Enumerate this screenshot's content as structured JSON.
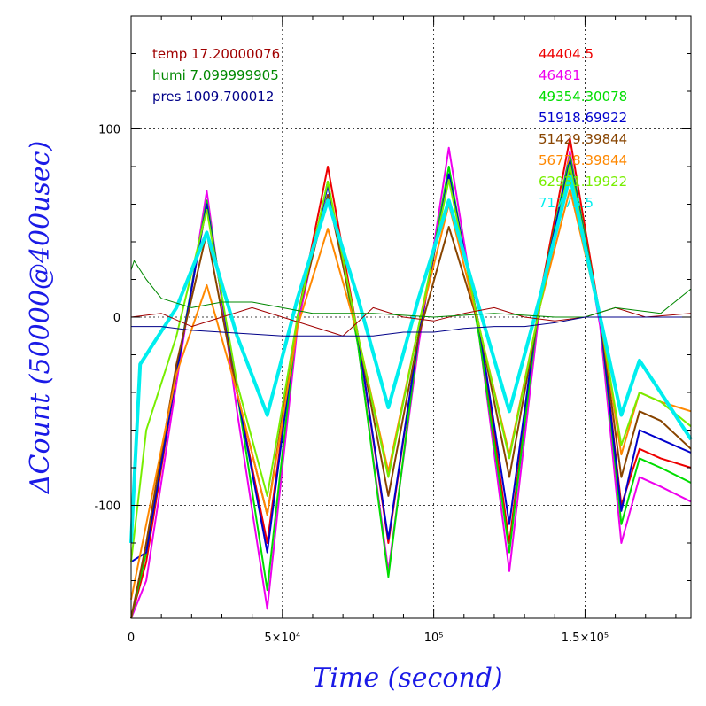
{
  "chart_data": {
    "type": "line",
    "xlabel": "Time (second)",
    "ylabel": "ΔCount (50000@400usec)",
    "xlim": [
      0,
      185000
    ],
    "ylim": [
      -160,
      160
    ],
    "grid": true,
    "x_ticks": [
      {
        "value": 0,
        "label": "0"
      },
      {
        "value": 50000,
        "label": "5×10⁴"
      },
      {
        "value": 100000,
        "label": "10⁵"
      },
      {
        "value": 150000,
        "label": "1.5×10⁵"
      }
    ],
    "y_ticks": [
      {
        "value": -100,
        "label": "-100"
      },
      {
        "value": 0,
        "label": "0"
      },
      {
        "value": 100,
        "label": "100"
      }
    ],
    "env_legend": [
      {
        "text": "temp 17.20000076",
        "color": "#a00000"
      },
      {
        "text": "humi 7.099999905",
        "color": "#008800"
      },
      {
        "text": "pres 1009.700012",
        "color": "#000088"
      }
    ],
    "series_legend": [
      {
        "text": "44404.5",
        "color": "#ee0000"
      },
      {
        "text": "46481",
        "color": "#ee00ee"
      },
      {
        "text": "49354.30078",
        "color": "#00dd00"
      },
      {
        "text": "51918.69922",
        "color": "#0000cc"
      },
      {
        "text": "51429.39844",
        "color": "#884400"
      },
      {
        "text": "56778.39844",
        "color": "#ff8800"
      },
      {
        "text": "62931.19922",
        "color": "#77ee00"
      },
      {
        "text": "71773.5",
        "color": "#00eeee"
      }
    ],
    "series": [
      {
        "name": "44404.5",
        "color": "#ee0000",
        "x": [
          0,
          5000,
          15000,
          25000,
          35000,
          45000,
          55000,
          65000,
          75000,
          85000,
          95000,
          105000,
          115000,
          125000,
          135000,
          145000,
          155000,
          162000,
          168000,
          175000,
          185000
        ],
        "y": [
          -160,
          -130,
          -30,
          60,
          -40,
          -120,
          0,
          80,
          -10,
          -120,
          -10,
          75,
          -5,
          -120,
          10,
          95,
          0,
          -100,
          -70,
          -75,
          -80
        ]
      },
      {
        "name": "46481",
        "color": "#ee00ee",
        "x": [
          0,
          5000,
          15000,
          25000,
          35000,
          45000,
          55000,
          65000,
          75000,
          85000,
          95000,
          105000,
          115000,
          125000,
          135000,
          145000,
          155000,
          162000,
          168000,
          175000,
          185000
        ],
        "y": [
          -160,
          -140,
          -35,
          67,
          -50,
          -155,
          -5,
          72,
          -15,
          -135,
          -15,
          90,
          -10,
          -135,
          5,
          88,
          -5,
          -120,
          -85,
          -90,
          -98
        ]
      },
      {
        "name": "49354.30078",
        "color": "#00dd00",
        "x": [
          0,
          5000,
          15000,
          25000,
          35000,
          45000,
          55000,
          65000,
          75000,
          85000,
          95000,
          105000,
          115000,
          125000,
          135000,
          145000,
          155000,
          162000,
          168000,
          175000,
          185000
        ],
        "y": [
          -160,
          -125,
          -30,
          62,
          -40,
          -145,
          0,
          72,
          -15,
          -138,
          -10,
          80,
          -10,
          -125,
          10,
          86,
          0,
          -110,
          -75,
          -80,
          -88
        ]
      },
      {
        "name": "51918.69922",
        "color": "#0000cc",
        "x": [
          0,
          5000,
          15000,
          25000,
          35000,
          45000,
          55000,
          65000,
          75000,
          85000,
          95000,
          105000,
          115000,
          125000,
          135000,
          145000,
          155000,
          162000,
          168000,
          175000,
          185000
        ],
        "y": [
          -130,
          -125,
          -30,
          60,
          -40,
          -125,
          0,
          70,
          -10,
          -118,
          -10,
          76,
          -5,
          -110,
          10,
          83,
          0,
          -103,
          -60,
          -65,
          -72
        ]
      },
      {
        "name": "51429.39844",
        "color": "#884400",
        "x": [
          0,
          5000,
          15000,
          25000,
          35000,
          45000,
          55000,
          65000,
          75000,
          85000,
          95000,
          105000,
          115000,
          125000,
          135000,
          145000,
          155000,
          162000,
          168000,
          175000,
          185000
        ],
        "y": [
          -160,
          -120,
          -25,
          45,
          -40,
          -105,
          0,
          65,
          -10,
          -95,
          -10,
          48,
          -5,
          -85,
          5,
          78,
          0,
          -85,
          -50,
          -55,
          -70
        ]
      },
      {
        "name": "56778.39844",
        "color": "#ff8800",
        "x": [
          0,
          5000,
          15000,
          25000,
          35000,
          45000,
          55000,
          65000,
          75000,
          85000,
          95000,
          105000,
          115000,
          125000,
          135000,
          145000,
          155000,
          162000,
          168000,
          175000,
          185000
        ],
        "y": [
          -150,
          -110,
          -30,
          17,
          -40,
          -105,
          -5,
          47,
          -10,
          -82,
          -5,
          60,
          -5,
          -73,
          5,
          68,
          0,
          -73,
          -40,
          -45,
          -50
        ]
      },
      {
        "name": "62931.19922",
        "color": "#77ee00",
        "x": [
          0,
          5000,
          15000,
          25000,
          35000,
          45000,
          55000,
          65000,
          75000,
          85000,
          95000,
          105000,
          115000,
          125000,
          135000,
          145000,
          155000,
          162000,
          168000,
          175000,
          185000
        ],
        "y": [
          -130,
          -60,
          -10,
          57,
          -35,
          -95,
          0,
          72,
          -10,
          -85,
          -5,
          73,
          -5,
          -75,
          5,
          81,
          0,
          -68,
          -40,
          -45,
          -58
        ]
      },
      {
        "name": "71773.5",
        "color": "#00eeee",
        "x": [
          0,
          3000,
          5000,
          15000,
          25000,
          35000,
          45000,
          55000,
          65000,
          75000,
          85000,
          95000,
          105000,
          115000,
          125000,
          135000,
          145000,
          155000,
          162000,
          168000,
          175000,
          185000
        ],
        "y": [
          -120,
          -25,
          -20,
          5,
          45,
          -10,
          -52,
          10,
          62,
          10,
          -48,
          10,
          62,
          5,
          -50,
          10,
          75,
          0,
          -52,
          -23,
          -40,
          -65
        ]
      },
      {
        "name": "temp 17.20000076",
        "color": "#a00000",
        "x": [
          0,
          10000,
          20000,
          30000,
          40000,
          50000,
          60000,
          70000,
          80000,
          90000,
          100000,
          110000,
          120000,
          130000,
          140000,
          150000,
          160000,
          170000,
          185000
        ],
        "y": [
          0,
          2,
          -5,
          0,
          5,
          0,
          -5,
          -10,
          5,
          0,
          -2,
          2,
          5,
          0,
          -2,
          0,
          5,
          0,
          2
        ]
      },
      {
        "name": "humi 7.099999905",
        "color": "#008800",
        "x": [
          0,
          1000,
          5000,
          10000,
          20000,
          30000,
          40000,
          50000,
          60000,
          80000,
          100000,
          120000,
          140000,
          150000,
          160000,
          175000,
          185000
        ],
        "y": [
          25,
          30,
          20,
          10,
          5,
          8,
          8,
          5,
          2,
          2,
          0,
          2,
          0,
          0,
          5,
          2,
          15
        ]
      },
      {
        "name": "pres 1009.700012",
        "color": "#000088",
        "x": [
          0,
          10000,
          20000,
          30000,
          40000,
          50000,
          60000,
          70000,
          80000,
          90000,
          100000,
          110000,
          120000,
          130000,
          140000,
          150000,
          160000,
          170000,
          185000
        ],
        "y": [
          -5,
          -5,
          -7,
          -8,
          -9,
          -10,
          -10,
          -10,
          -10,
          -8,
          -8,
          -6,
          -5,
          -5,
          -3,
          0,
          0,
          0,
          0
        ]
      }
    ]
  }
}
